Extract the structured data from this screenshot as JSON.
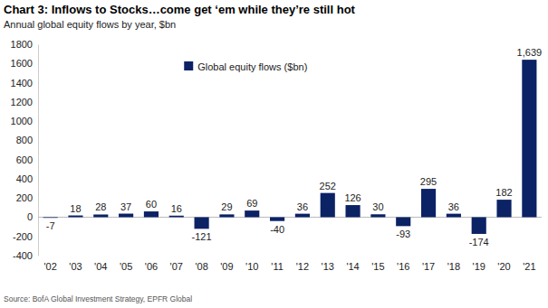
{
  "chart_data": {
    "type": "bar",
    "title": "Chart 3: Inflows to Stocks…come get ‘em while they’re still hot",
    "subtitle": "Annual global equity flows by year, $bn",
    "source": "Source: BofA Global Investment Strategy, EPFR Global",
    "categories": [
      "'02",
      "'03",
      "'04",
      "'05",
      "'06",
      "'07",
      "'08",
      "'09",
      "'10",
      "'11",
      "'12",
      "'13",
      "'14",
      "'15",
      "'16",
      "'17",
      "'18",
      "'19",
      "'20",
      "'21"
    ],
    "series": [
      {
        "name": "Global equity flows ($bn)",
        "color": "#0b2265",
        "values": [
          -7,
          18,
          28,
          37,
          60,
          16,
          -121,
          29,
          69,
          -40,
          36,
          252,
          126,
          30,
          -93,
          295,
          36,
          -174,
          182,
          1639
        ],
        "value_labels": [
          "-7",
          "18",
          "28",
          "37",
          "60",
          "16",
          "-121",
          "29",
          "69",
          "-40",
          "36",
          "252",
          "126",
          "30",
          "-93",
          "295",
          "36",
          "-174",
          "182",
          "1,639"
        ]
      }
    ],
    "ylim": [
      -400,
      1800
    ],
    "yticks": [
      -400,
      -200,
      0,
      200,
      400,
      600,
      800,
      1000,
      1200,
      1400,
      1600,
      1800
    ],
    "grid": false,
    "legend": "top",
    "data_labels": true
  }
}
